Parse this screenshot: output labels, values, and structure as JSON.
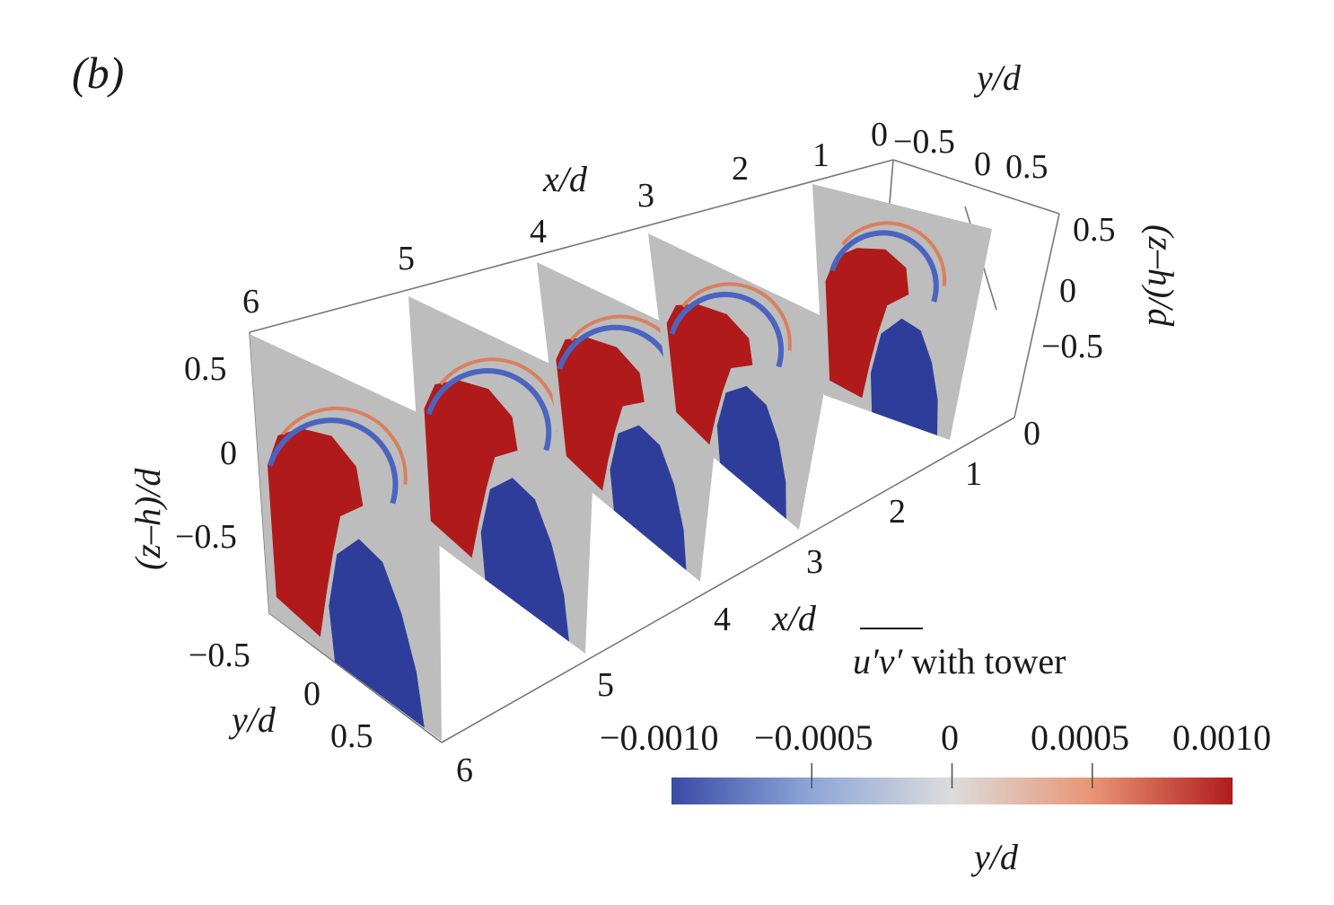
{
  "panel_label": "(b)",
  "chart_data": {
    "type": "heatmap",
    "title": "u′v′ with tower",
    "title_math": {
      "overbar": "u′v′",
      "rest": " with tower"
    },
    "axes": {
      "x": {
        "label": "x/d",
        "ticks": [
          "1",
          "2",
          "3",
          "4",
          "5",
          "6"
        ],
        "bottom_ticks": [
          "0",
          "1",
          "2",
          "3",
          "4",
          "5",
          "6"
        ]
      },
      "y": {
        "label": "y/d",
        "ticks_front": [
          "−0.5",
          "0",
          "0.5"
        ],
        "ticks_back": [
          "−0.5",
          "0",
          "0.5"
        ],
        "back_zero": "0"
      },
      "z": {
        "label": "(z–h)/d",
        "ticks": [
          "0.5",
          "0",
          "−0.5"
        ]
      }
    },
    "slices_x": [
      1,
      2,
      3,
      4,
      5
    ],
    "colorbar": {
      "min": -0.001,
      "max": 0.001,
      "tick_values": [
        -0.001,
        -0.0005,
        0,
        0.0005,
        0.001
      ],
      "tick_labels": [
        "−0.0010",
        "−0.0005",
        "0",
        "0.0005",
        "0.0010"
      ],
      "colors": [
        "#3b4aa8",
        "#d9d9d9",
        "#b01c1c"
      ],
      "caption": "y/d"
    },
    "colors": {
      "negative": "#2f3d9a",
      "positive": "#b01a1a",
      "neutral": "#bdbdbd"
    }
  }
}
